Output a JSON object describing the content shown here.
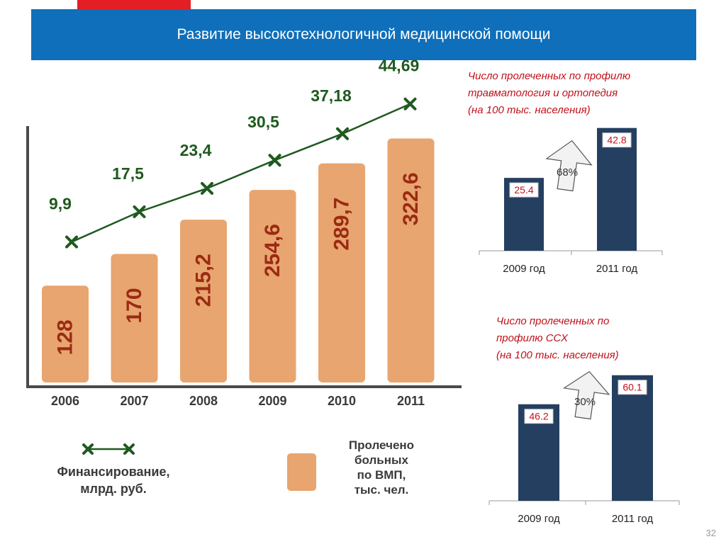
{
  "slide": {
    "title": "Развитие высокотехнологичной медицинской помощи",
    "page_number": "32",
    "colors": {
      "header": "#0f6fba",
      "accent_red": "#e31e24",
      "bar_orange": "#e8a56f",
      "bar_label": "#9b2a14",
      "line_green": "#1f5a1f",
      "navy_bar": "#243f60",
      "value_label": "#c0121b"
    }
  },
  "chart_data": [
    {
      "type": "bar",
      "categories": [
        "2006",
        "2007",
        "2008",
        "2009",
        "2010",
        "2011"
      ],
      "series": [
        {
          "name": "Пролечено больных по ВМП, тыс. чел.",
          "values": [
            128,
            170,
            215.2,
            254.6,
            289.7,
            322.6
          ],
          "labels": [
            "128",
            "170",
            "215,2",
            "254,6",
            "289,7",
            "322,6"
          ]
        },
        {
          "name": "Финансирование, млрд. руб.",
          "type": "line",
          "values": [
            9.9,
            17.5,
            23.4,
            30.5,
            37.18,
            44.69
          ],
          "labels": [
            "9,9",
            "17,5",
            "23,4",
            "30,5",
            "37,18",
            "44,69"
          ]
        }
      ],
      "legend": {
        "line_label": [
          "Финансирование,",
          "млрд. руб."
        ],
        "bar_label": [
          "Пролечено",
          "больных",
          "по ВМП,",
          "тыс. чел."
        ],
        "placement": "bottom"
      }
    },
    {
      "type": "bar",
      "title_lines": [
        "Число пролеченных по профилю",
        "травматология и ортопедия",
        "(на 100 тыс. населения)"
      ],
      "categories": [
        "2009 год",
        "2011 год"
      ],
      "values": [
        25.4,
        42.8
      ],
      "labels": [
        "25.4",
        "42.8"
      ],
      "growth": "68%"
    },
    {
      "type": "bar",
      "title_lines": [
        "Число пролеченных по",
        "профилю ССХ",
        "(на 100 тыс. населения)"
      ],
      "categories": [
        "2009 год",
        "2011 год"
      ],
      "values": [
        46.2,
        60.1
      ],
      "labels": [
        "46.2",
        "60.1"
      ],
      "growth": "30%"
    }
  ]
}
